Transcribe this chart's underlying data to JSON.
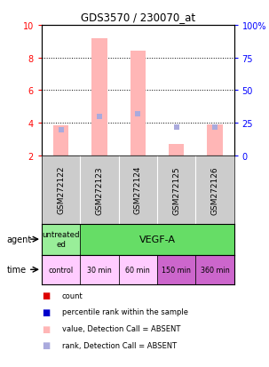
{
  "title": "GDS3570 / 230070_at",
  "samples": [
    "GSM272122",
    "GSM272123",
    "GSM272124",
    "GSM272125",
    "GSM272126"
  ],
  "bar_values": [
    3.85,
    9.2,
    8.4,
    2.7,
    3.9
  ],
  "rank_values_pct": [
    20,
    30,
    32,
    22,
    22
  ],
  "ylim_left": [
    2,
    10
  ],
  "ylim_right": [
    0,
    100
  ],
  "yticks_left": [
    2,
    4,
    6,
    8,
    10
  ],
  "yticks_right": [
    0,
    25,
    50,
    75,
    100
  ],
  "time_labels": [
    "control",
    "30 min",
    "60 min",
    "150 min",
    "360 min"
  ],
  "time_colors": [
    "#FFCCFF",
    "#FFCCFF",
    "#FFCCFF",
    "#CC66CC",
    "#CC66CC"
  ],
  "agent_untreated_color": "#99EE99",
  "agent_vegfa_color": "#66DD66",
  "sample_bg_color": "#CCCCCC",
  "bar_color": "#FFB6B6",
  "rank_color": "#AAAADD",
  "bar_width": 0.4,
  "legend_items": [
    "count",
    "percentile rank within the sample",
    "value, Detection Call = ABSENT",
    "rank, Detection Call = ABSENT"
  ],
  "legend_colors": [
    "#DD0000",
    "#0000CC",
    "#FFB6B6",
    "#AAAADD"
  ]
}
